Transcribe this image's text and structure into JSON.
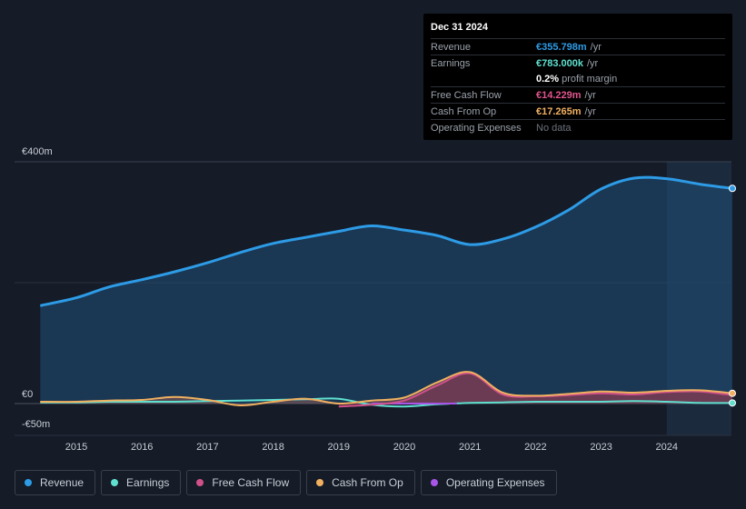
{
  "tooltip": {
    "date": "Dec 31 2024",
    "rows": [
      {
        "label": "Revenue",
        "value": "€355.798m",
        "unit": "/yr",
        "color": "#2d9be6"
      },
      {
        "label": "Earnings",
        "value": "€783.000k",
        "unit": "/yr",
        "color": "#5fe0cf"
      },
      {
        "label": "",
        "value": "0.2%",
        "unit": "profit margin",
        "color": "#ffffff"
      },
      {
        "label": "Free Cash Flow",
        "value": "€14.229m",
        "unit": "/yr",
        "color": "#e0558c"
      },
      {
        "label": "Cash From Op",
        "value": "€17.265m",
        "unit": "/yr",
        "color": "#f0b060"
      },
      {
        "label": "Operating Expenses",
        "value": "No data",
        "unit": "",
        "color": "#6c727c"
      }
    ]
  },
  "legend": [
    {
      "label": "Revenue",
      "color": "#2d9be6"
    },
    {
      "label": "Earnings",
      "color": "#5fe0cf"
    },
    {
      "label": "Free Cash Flow",
      "color": "#d0508a"
    },
    {
      "label": "Cash From Op",
      "color": "#f0b060"
    },
    {
      "label": "Operating Expenses",
      "color": "#a855e8"
    }
  ],
  "chart_data": {
    "type": "area",
    "title": "",
    "xlabel": "",
    "ylabel": "",
    "ylim": [
      -50,
      400
    ],
    "y_tick_labels": [
      "€400m",
      "€0",
      "-€50m"
    ],
    "x_tick_labels": [
      "2015",
      "2016",
      "2017",
      "2018",
      "2019",
      "2020",
      "2021",
      "2022",
      "2023",
      "2024"
    ],
    "x_ticks": [
      2015,
      2016,
      2017,
      2018,
      2019,
      2020,
      2021,
      2022,
      2023,
      2024
    ],
    "x_range": [
      2014.55,
      2025.0
    ],
    "highlight_from": 2024.0,
    "series": [
      {
        "name": "Revenue",
        "color": "#2d9be6",
        "x": [
          2014.45,
          2015.0,
          2015.5,
          2016.0,
          2016.5,
          2017.0,
          2017.5,
          2018.0,
          2018.5,
          2019.0,
          2019.5,
          2020.0,
          2020.5,
          2021.0,
          2021.5,
          2022.0,
          2022.5,
          2023.0,
          2023.5,
          2024.0,
          2024.5,
          2025.0
        ],
        "values": [
          162,
          175,
          193,
          205,
          218,
          233,
          250,
          265,
          275,
          285,
          294,
          287,
          278,
          263,
          272,
          292,
          320,
          355,
          373,
          372,
          363,
          356
        ]
      },
      {
        "name": "Earnings",
        "color": "#5fe0cf",
        "x": [
          2014.45,
          2015.0,
          2015.5,
          2016.0,
          2016.5,
          2017.0,
          2017.5,
          2018.0,
          2018.5,
          2019.0,
          2019.5,
          2020.0,
          2020.5,
          2021.0,
          2021.5,
          2022.0,
          2022.5,
          2023.0,
          2023.5,
          2024.0,
          2024.5,
          2025.0
        ],
        "values": [
          2,
          2,
          3,
          3,
          3,
          4,
          5,
          6,
          7,
          8,
          -2,
          -5,
          -1,
          1,
          2,
          3,
          3,
          3,
          4,
          3,
          1,
          1
        ]
      },
      {
        "name": "Free Cash Flow",
        "color": "#d0508a",
        "x": [
          2019.0,
          2019.5,
          2020.0,
          2020.5,
          2021.0,
          2021.5,
          2022.0,
          2022.5,
          2023.0,
          2023.5,
          2024.0,
          2024.5,
          2025.0
        ],
        "values": [
          -5,
          -2,
          5,
          30,
          50,
          15,
          12,
          14,
          17,
          15,
          19,
          20,
          14
        ]
      },
      {
        "name": "Cash From Op",
        "color": "#f0b060",
        "x": [
          2014.45,
          2015.0,
          2015.5,
          2016.0,
          2016.5,
          2017.0,
          2017.5,
          2018.0,
          2018.5,
          2019.0,
          2019.5,
          2020.0,
          2020.5,
          2021.0,
          2021.5,
          2022.0,
          2022.5,
          2023.0,
          2023.5,
          2024.0,
          2024.5,
          2025.0
        ],
        "values": [
          3,
          3,
          5,
          6,
          11,
          6,
          -3,
          3,
          8,
          0,
          5,
          10,
          35,
          52,
          18,
          13,
          16,
          20,
          18,
          21,
          22,
          17
        ]
      },
      {
        "name": "Operating Expenses",
        "color": "#a855e8",
        "x": [
          2019.5,
          2020.0,
          2020.5,
          2020.8
        ],
        "values": [
          0,
          0,
          0,
          0
        ]
      }
    ]
  }
}
